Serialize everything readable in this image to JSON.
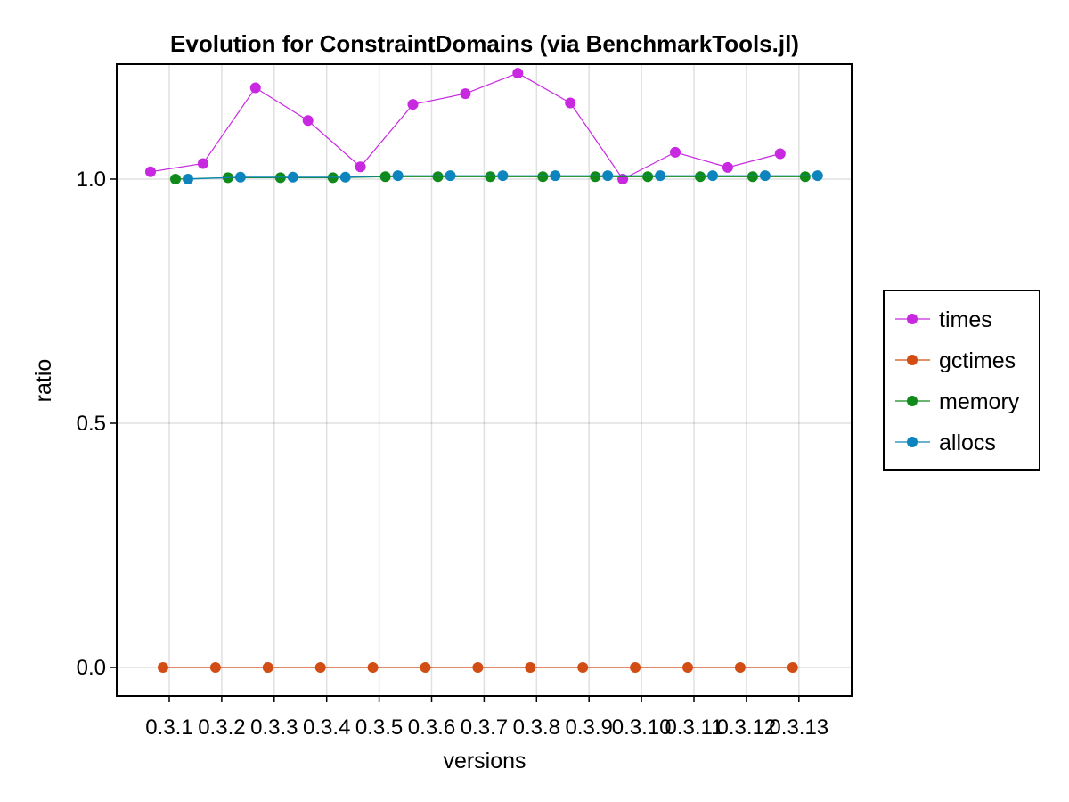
{
  "chart_data": {
    "type": "line",
    "title": "Evolution for ConstraintDomains (via BenchmarkTools.jl)",
    "xlabel": "versions",
    "ylabel": "ratio",
    "categories": [
      "0.3.1",
      "0.3.2",
      "0.3.3",
      "0.3.4",
      "0.3.5",
      "0.3.6",
      "0.3.7",
      "0.3.8",
      "0.3.9",
      "0.3.10",
      "0.3.11",
      "0.3.12",
      "0.3.13"
    ],
    "yticks": [
      "0.0",
      "0.5",
      "1.0"
    ],
    "ylim": [
      -0.07,
      1.27
    ],
    "grid": true,
    "legend_position": "right",
    "series": [
      {
        "name": "times",
        "color": "#c728e0",
        "values": [
          1.015,
          1.032,
          1.187,
          1.12,
          1.025,
          1.153,
          1.175,
          1.217,
          1.156,
          1.0,
          1.055,
          1.024,
          1.052
        ]
      },
      {
        "name": "gctimes",
        "color": "#d24d14",
        "values": [
          0,
          0,
          0,
          0,
          0,
          0,
          0,
          0,
          0,
          0,
          0,
          0,
          0
        ]
      },
      {
        "name": "memory",
        "color": "#118a1c",
        "values": [
          1.0,
          1.003,
          1.003,
          1.003,
          1.005,
          1.005,
          1.005,
          1.005,
          1.005,
          1.005,
          1.005,
          1.005,
          1.005
        ]
      },
      {
        "name": "allocs",
        "color": "#0d84bd",
        "values": [
          1.0,
          1.004,
          1.004,
          1.004,
          1.007,
          1.007,
          1.007,
          1.007,
          1.007,
          1.007,
          1.007,
          1.007,
          1.007
        ]
      }
    ]
  }
}
